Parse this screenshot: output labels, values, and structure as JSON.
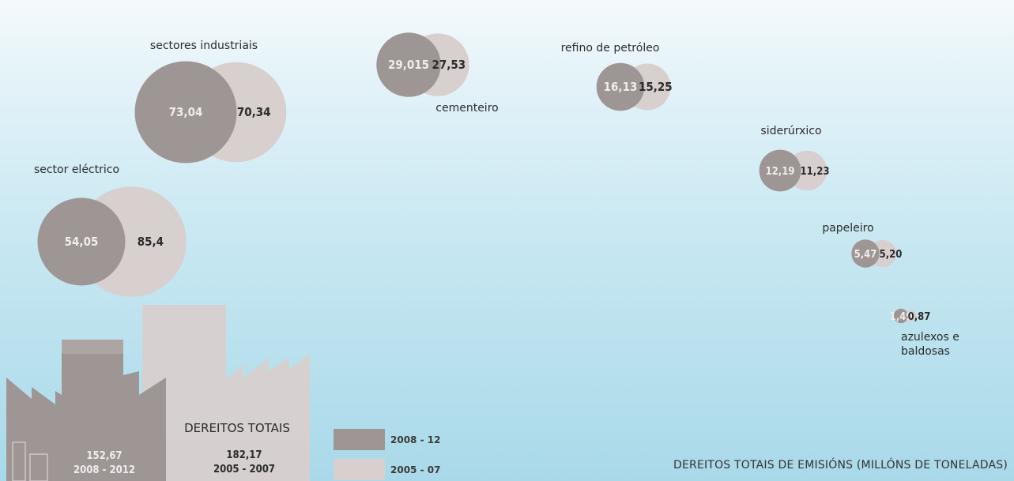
{
  "colors": {
    "period_2008_12": "#9e9595",
    "period_2005_07": "#d8cfcf",
    "text_dark": "#2b2b2b",
    "text_light": "#f2ecec"
  },
  "chart_data": {
    "type": "bubble",
    "title": "DEREITOS TOTAIS DE EMISIÓNS (MILLÓNS DE TONELADAS)",
    "series": [
      {
        "name": "2008 - 12",
        "legend_label": "2008 - 12",
        "color": "#9e9595"
      },
      {
        "name": "2005 - 07",
        "legend_label": "2005 - 07",
        "color": "#d8cfcf"
      }
    ],
    "sectors": [
      {
        "id": "sectores-industriais",
        "name": "sectores industriais",
        "value_2008_12": 73.04,
        "label_2008_12": "73,04",
        "value_2005_07": 70.34,
        "label_2005_07": "70,34"
      },
      {
        "id": "cementeiro",
        "name": "cementeiro",
        "value_2008_12": 29.015,
        "label_2008_12": "29,015",
        "value_2005_07": 27.53,
        "label_2005_07": "27,53"
      },
      {
        "id": "refino-de-petroleo",
        "name": "refino de petróleo",
        "value_2008_12": 16.13,
        "label_2008_12": "16,13",
        "value_2005_07": 15.25,
        "label_2005_07": "15,25"
      },
      {
        "id": "sector-electrico",
        "name": "sector eléctrico",
        "value_2008_12": 54.05,
        "label_2008_12": "54,05",
        "value_2005_07": 85.4,
        "label_2005_07": "85,4"
      },
      {
        "id": "siderurxico",
        "name": "siderúrxico",
        "value_2008_12": 12.19,
        "label_2008_12": "12,19",
        "value_2005_07": 11.23,
        "label_2005_07": "11,23"
      },
      {
        "id": "papeleiro",
        "name": "papeleiro",
        "value_2008_12": 5.47,
        "label_2008_12": "5,47",
        "value_2005_07": 5.2,
        "label_2005_07": "5,20"
      },
      {
        "id": "azulexos-e-baldosas",
        "name": "azulexos e baldosas",
        "name_lines": [
          "azulexos e",
          "baldosas"
        ],
        "value_2008_12": 1.49,
        "label_2008_12": "1,49",
        "value_2005_07": 0.87,
        "label_2005_07": "0,87"
      }
    ],
    "totals": {
      "label": "DEREITOS TOTAIS",
      "value_2008_12": 152.67,
      "label_2008_12": "152,67",
      "period_2008_12": "2008 - 2012",
      "value_2005_07": 182.17,
      "label_2005_07": "182,17",
      "period_2005_07": "2005 - 2007"
    }
  }
}
